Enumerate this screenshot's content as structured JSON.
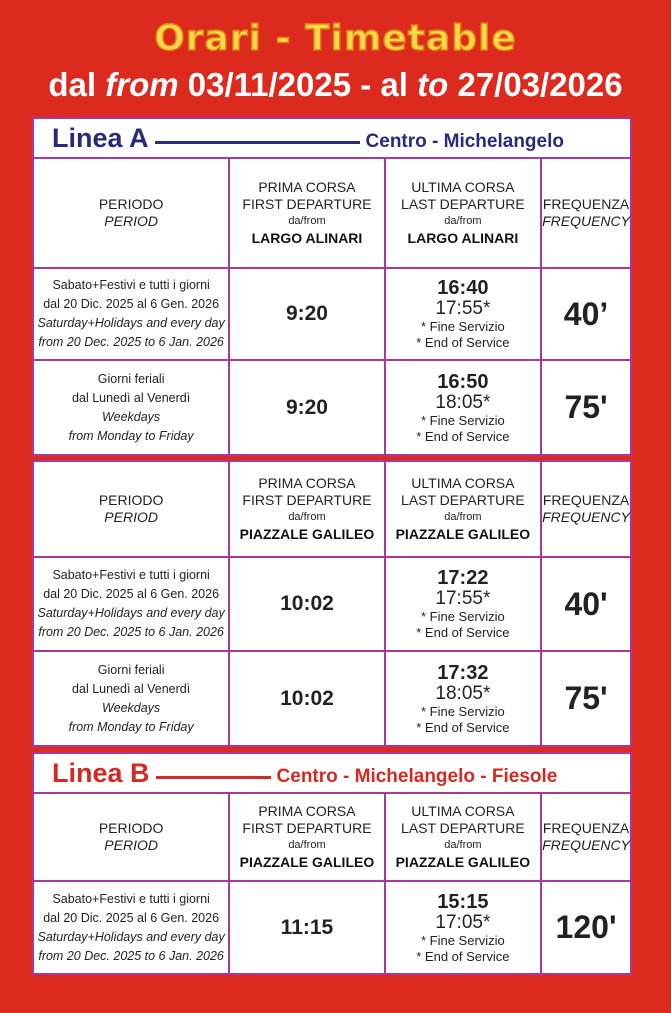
{
  "title": "Orari - Timetable",
  "dates": {
    "dal": "dal",
    "from": "from",
    "start": "03/11/2025 - al",
    "to": "to",
    "end": "27/03/2026"
  },
  "labels": {
    "periodo": "PERIODO",
    "period": "PERIOD",
    "prima": "PRIMA CORSA",
    "first": "FIRST DEPARTURE",
    "ultima": "ULTIMA CORSA",
    "last": "LAST DEPARTURE",
    "dafrom": "da/from",
    "frequenza": "FREQUENZA",
    "frequency": "FREQUENCY",
    "fine": "* Fine Servizio",
    "end": "* End of Service"
  },
  "periods": {
    "holiday": [
      "Sabato+Festivi e tutti i giorni",
      "dal 20 Dic. 2025 al 6 Gen. 2026",
      "Saturday+Holidays and every day",
      "from 20 Dec. 2025 to 6 Jan. 2026"
    ],
    "weekday": [
      "Giorni feriali",
      "dal Lunedì al Venerdì",
      "Weekdays",
      "from Monday to Friday"
    ]
  },
  "lines": [
    {
      "name": "Linea A",
      "route": "Centro - Michelangelo",
      "color": "#2a2a7a"
    },
    {
      "name": "Linea B",
      "route": "Centro - Michelangelo - Fiesole",
      "color": "#d42a22"
    }
  ],
  "sections": [
    {
      "origin": "LARGO ALINARI",
      "rows": [
        {
          "period": "holiday",
          "first": "9:20",
          "last": "16:40",
          "end": "17:55*",
          "freq": "40’"
        },
        {
          "period": "weekday",
          "first": "9:20",
          "last": "16:50",
          "end": "18:05*",
          "freq": "75'"
        }
      ]
    },
    {
      "origin": "PIAZZALE GALILEO",
      "rows": [
        {
          "period": "holiday",
          "first": "10:02",
          "last": "17:22",
          "end": "17:55*",
          "freq": "40'"
        },
        {
          "period": "weekday",
          "first": "10:02",
          "last": "17:32",
          "end": "18:05*",
          "freq": "75'"
        }
      ]
    },
    {
      "origin": "PIAZZALE GALILEO",
      "rows": [
        {
          "period": "holiday",
          "first": "11:15",
          "last": "15:15",
          "end": "17:05*",
          "freq": "120'"
        }
      ]
    }
  ],
  "colors": {
    "background": "#dc2a1e",
    "border": "#a8389c",
    "period_text": "#8a2a88",
    "title": "#ffd84a"
  }
}
